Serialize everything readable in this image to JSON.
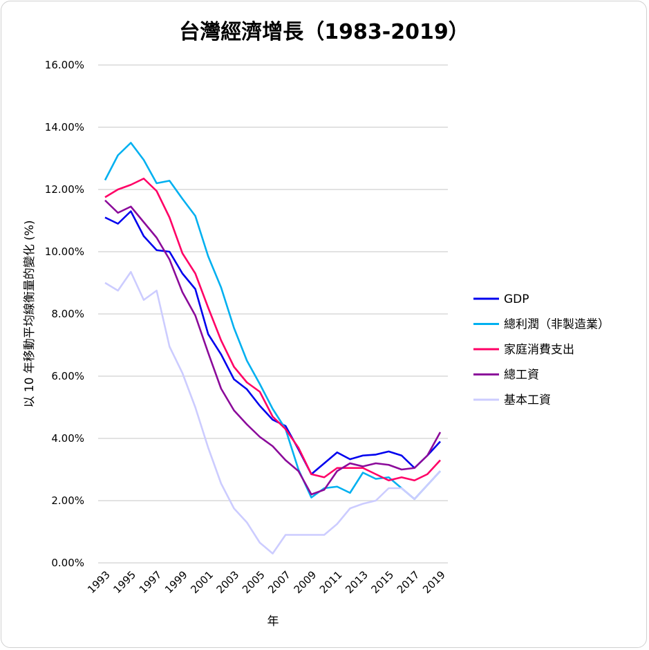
{
  "chart_data": {
    "type": "line",
    "title": "台灣經濟增長（1983-2019）",
    "xlabel": "年",
    "ylabel": "以 10 年移動平均線衡量的變化 (%)",
    "ylim": [
      0,
      16
    ],
    "yticks": [
      "0.00%",
      "2.00%",
      "4.00%",
      "6.00%",
      "8.00%",
      "10.00%",
      "12.00%",
      "14.00%",
      "16.00%"
    ],
    "grid": true,
    "legend_position": "right",
    "x": [
      1993,
      1994,
      1995,
      1996,
      1997,
      1998,
      1999,
      2000,
      2001,
      2002,
      2003,
      2004,
      2005,
      2006,
      2007,
      2008,
      2009,
      2010,
      2011,
      2012,
      2013,
      2014,
      2015,
      2016,
      2017,
      2018,
      2019
    ],
    "xtick_labels": [
      "1993",
      "1995",
      "1997",
      "1999",
      "2001",
      "2003",
      "2005",
      "2007",
      "2009",
      "2011",
      "2013",
      "2015",
      "2017",
      "2019"
    ],
    "series": [
      {
        "name": "GDP",
        "color": "#0000ee",
        "values": [
          11.1,
          10.9,
          11.3,
          10.5,
          10.05,
          10.0,
          9.3,
          8.8,
          7.35,
          6.7,
          5.9,
          5.58,
          5.05,
          4.6,
          4.4,
          3.65,
          2.85,
          3.2,
          3.55,
          3.33,
          3.45,
          3.48,
          3.58,
          3.45,
          3.05,
          3.45,
          3.9
        ]
      },
      {
        "name": "總利潤（非製造業）",
        "color": "#00b0f0",
        "values": [
          12.3,
          13.1,
          13.5,
          12.95,
          12.2,
          12.28,
          11.7,
          11.15,
          9.85,
          8.85,
          7.55,
          6.5,
          5.75,
          4.95,
          4.3,
          3.0,
          2.1,
          2.4,
          2.45,
          2.25,
          2.9,
          2.7,
          2.75,
          2.4,
          2.05,
          2.5,
          2.95
        ]
      },
      {
        "name": "家庭消費支出",
        "color": "#ff0066",
        "values": [
          11.75,
          12.0,
          12.15,
          12.35,
          11.95,
          11.1,
          9.95,
          9.3,
          8.2,
          7.15,
          6.3,
          5.8,
          5.5,
          4.7,
          4.3,
          3.7,
          2.85,
          2.75,
          3.05,
          3.05,
          3.05,
          2.85,
          2.65,
          2.75,
          2.65,
          2.85,
          3.3
        ]
      },
      {
        "name": "總工資",
        "color": "#8b0a9a",
        "values": [
          11.65,
          11.25,
          11.45,
          10.95,
          10.45,
          9.75,
          8.7,
          7.95,
          6.75,
          5.6,
          4.9,
          4.45,
          4.05,
          3.75,
          3.3,
          2.95,
          2.2,
          2.35,
          2.95,
          3.2,
          3.1,
          3.2,
          3.15,
          3.0,
          3.05,
          3.45,
          4.2
        ]
      },
      {
        "name": "基本工資",
        "color": "#ccccff",
        "values": [
          9.0,
          8.75,
          9.35,
          8.45,
          8.75,
          6.95,
          6.1,
          5.0,
          3.7,
          2.55,
          1.75,
          1.3,
          0.65,
          0.3,
          0.9,
          0.9,
          0.9,
          0.9,
          1.25,
          1.75,
          1.9,
          2.0,
          2.4,
          2.4,
          2.05,
          2.5,
          2.95
        ]
      }
    ]
  }
}
